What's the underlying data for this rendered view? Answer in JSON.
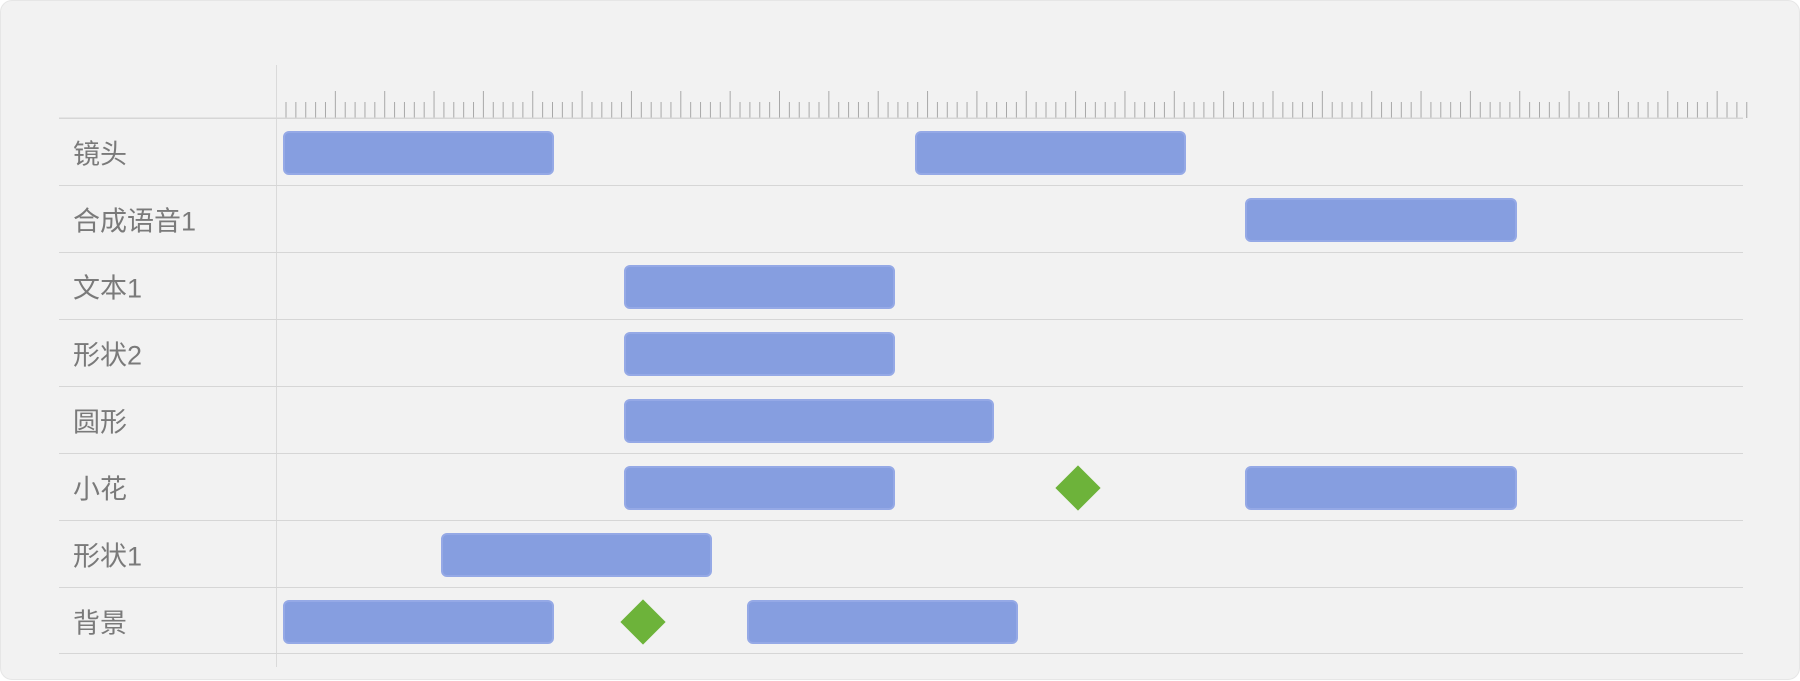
{
  "timeline": {
    "ruler": {
      "major_every": 5,
      "minor_ticks": 150
    },
    "tracks": [
      {
        "id": "lens",
        "label": "镜头",
        "clips": [
          {
            "start": 0,
            "end": 27.5
          },
          {
            "start": 64,
            "end": 91.5
          }
        ],
        "keyframes": []
      },
      {
        "id": "tts1",
        "label": "合成语音1",
        "clips": [
          {
            "start": 97.5,
            "end": 125
          }
        ],
        "keyframes": []
      },
      {
        "id": "text1",
        "label": "文本1",
        "clips": [
          {
            "start": 34.5,
            "end": 62
          }
        ],
        "keyframes": []
      },
      {
        "id": "shape2",
        "label": "形状2",
        "clips": [
          {
            "start": 34.5,
            "end": 62
          }
        ],
        "keyframes": []
      },
      {
        "id": "circle",
        "label": "圆形",
        "clips": [
          {
            "start": 34.5,
            "end": 72
          }
        ],
        "keyframes": []
      },
      {
        "id": "flower",
        "label": "小花",
        "clips": [
          {
            "start": 34.5,
            "end": 62
          },
          {
            "start": 97.5,
            "end": 125
          }
        ],
        "keyframes": [
          80.5
        ]
      },
      {
        "id": "shape1",
        "label": "形状1",
        "clips": [
          {
            "start": 16,
            "end": 43.5
          }
        ],
        "keyframes": []
      },
      {
        "id": "background",
        "label": "背景",
        "clips": [
          {
            "start": 0,
            "end": 27.5
          },
          {
            "start": 47,
            "end": 74.5
          }
        ],
        "keyframes": [
          36.5
        ]
      }
    ]
  },
  "colors": {
    "clip_fill": "#869ee0",
    "keyframe_fill": "#6db33a",
    "label_text": "#7a7a7a",
    "grid_line": "#d6d6d6"
  }
}
